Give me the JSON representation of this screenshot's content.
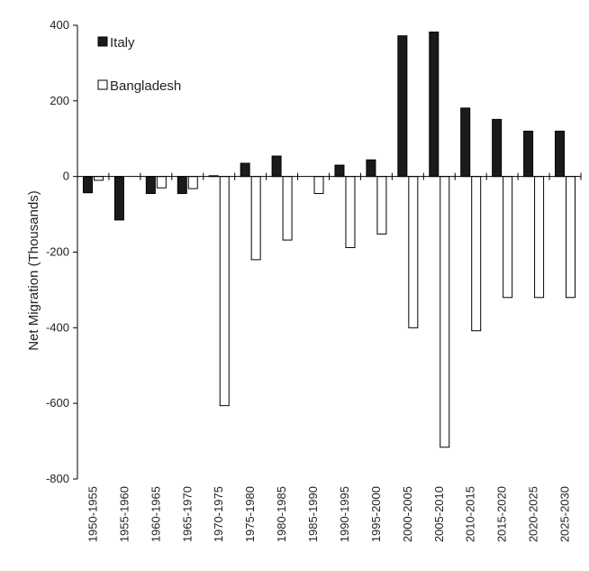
{
  "chart_data": {
    "type": "bar",
    "title": "",
    "xlabel": "",
    "ylabel": "Net Migration (Thousands)",
    "ylim": [
      -800,
      400
    ],
    "yticks": [
      400,
      200,
      0,
      -200,
      -400,
      -600,
      -800
    ],
    "grid": false,
    "legend_position": "top-left",
    "categories": [
      "1950-1955",
      "1955-1960",
      "1960-1965",
      "1965-1970",
      "1970-1975",
      "1975-1980",
      "1980-1985",
      "1985-1990",
      "1990-1995",
      "1995-2000",
      "2000-2005",
      "2005-2010",
      "2010-2015",
      "2015-2020",
      "2020-2025",
      "2025-2030"
    ],
    "series": [
      {
        "name": "Italy",
        "color": "#1a1a1a",
        "values": [
          -43,
          -115,
          -45,
          -45,
          2,
          35,
          54,
          0,
          30,
          44,
          372,
          382,
          181,
          151,
          120,
          120
        ]
      },
      {
        "name": "Bangladesh",
        "color": "#ffffff",
        "values": [
          -10,
          0,
          -30,
          -32,
          -606,
          -220,
          -168,
          -45,
          -188,
          -152,
          -400,
          -716,
          -408,
          -320,
          -320,
          -320
        ]
      }
    ]
  }
}
